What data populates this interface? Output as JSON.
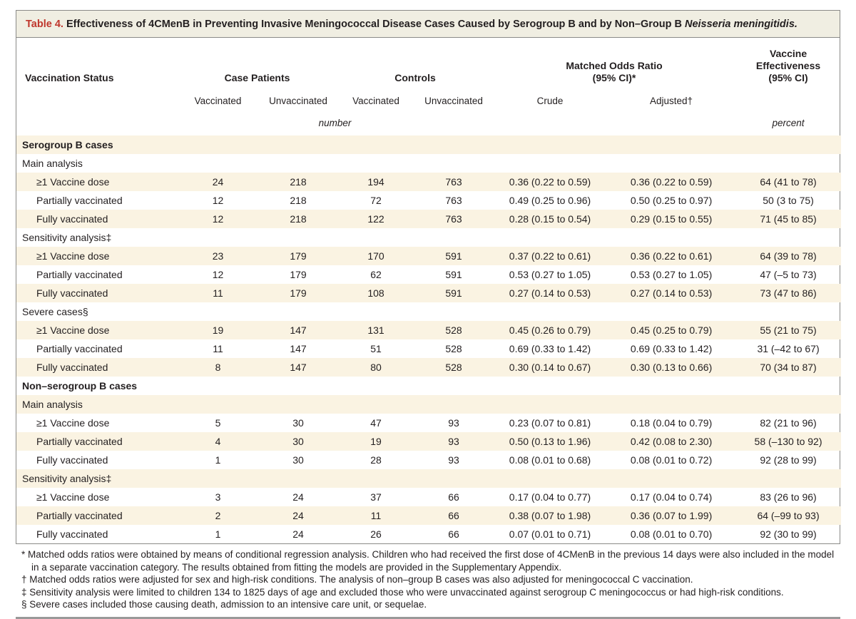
{
  "colors": {
    "stripe": "#faf3e2",
    "title_bar_bg": "#f0eee2",
    "border": "#8a8a87",
    "table_label_red": "#bf362c",
    "text": "#231f20",
    "bottom_rule": "#999999"
  },
  "title": {
    "label": "Table 4.",
    "text": " Effectiveness of 4CMenB in Preventing Invasive Meningococcal Disease Cases Caused by Serogroup B and by Non–Group B ",
    "species": "Neisseria meningitidis."
  },
  "header": {
    "vaccination_status": "Vaccination Status",
    "case_patients": "Case Patients",
    "controls": "Controls",
    "mor_line1": "Matched Odds Ratio",
    "mor_line2": "(95% CI)*",
    "ve_line1": "Vaccine Effectiveness",
    "ve_line2": "(95% CI)",
    "sub": {
      "case_vaccinated": "Vaccinated",
      "case_unvaccinated": "Unvaccinated",
      "ctrl_vaccinated": "Vaccinated",
      "ctrl_unvaccinated": "Unvaccinated",
      "crude": "Crude",
      "adjusted": "Adjusted†"
    },
    "unit_number": "number",
    "unit_percent": "percent"
  },
  "rows": [
    {
      "type": "section",
      "label": "Serogroup B cases"
    },
    {
      "type": "subsection",
      "label": "Main analysis"
    },
    {
      "type": "data",
      "label": "≥1 Vaccine dose",
      "values": [
        "24",
        "218",
        "194",
        "763",
        "0.36 (0.22 to 0.59)",
        "0.36 (0.22 to 0.59)",
        "64 (41 to 78)"
      ]
    },
    {
      "type": "data",
      "label": "Partially vaccinated",
      "values": [
        "12",
        "218",
        "72",
        "763",
        "0.49 (0.25 to 0.96)",
        "0.50 (0.25 to 0.97)",
        "50 (3 to 75)"
      ]
    },
    {
      "type": "data",
      "label": "Fully vaccinated",
      "values": [
        "12",
        "218",
        "122",
        "763",
        "0.28 (0.15 to 0.54)",
        "0.29 (0.15 to 0.55)",
        "71 (45 to 85)"
      ]
    },
    {
      "type": "subsection",
      "label": "Sensitivity analysis‡"
    },
    {
      "type": "data",
      "label": "≥1 Vaccine dose",
      "values": [
        "23",
        "179",
        "170",
        "591",
        "0.37 (0.22 to 0.61)",
        "0.36 (0.22 to 0.61)",
        "64 (39 to 78)"
      ]
    },
    {
      "type": "data",
      "label": "Partially vaccinated",
      "values": [
        "12",
        "179",
        "62",
        "591",
        "0.53 (0.27 to 1.05)",
        "0.53 (0.27 to 1.05)",
        "47 (–5 to 73)"
      ]
    },
    {
      "type": "data",
      "label": "Fully vaccinated",
      "values": [
        "11",
        "179",
        "108",
        "591",
        "0.27 (0.14 to 0.53)",
        "0.27 (0.14 to 0.53)",
        "73 (47 to 86)"
      ]
    },
    {
      "type": "subsection",
      "label": "Severe cases§"
    },
    {
      "type": "data",
      "label": "≥1 Vaccine dose",
      "values": [
        "19",
        "147",
        "131",
        "528",
        "0.45 (0.26 to 0.79)",
        "0.45 (0.25 to 0.79)",
        "55 (21 to 75)"
      ]
    },
    {
      "type": "data",
      "label": "Partially vaccinated",
      "values": [
        "11",
        "147",
        "51",
        "528",
        "0.69 (0.33 to 1.42)",
        "0.69 (0.33 to 1.42)",
        "31 (–42 to 67)"
      ]
    },
    {
      "type": "data",
      "label": "Fully vaccinated",
      "values": [
        "8",
        "147",
        "80",
        "528",
        "0.30 (0.14 to 0.67)",
        "0.30 (0.13 to 0.66)",
        "70 (34 to 87)"
      ]
    },
    {
      "type": "section",
      "label": "Non–serogroup B cases"
    },
    {
      "type": "subsection",
      "label": "Main analysis"
    },
    {
      "type": "data",
      "label": "≥1 Vaccine dose",
      "values": [
        "5",
        "30",
        "47",
        "93",
        "0.23 (0.07 to 0.81)",
        "0.18 (0.04 to 0.79)",
        "82 (21 to 96)"
      ]
    },
    {
      "type": "data",
      "label": "Partially vaccinated",
      "values": [
        "4",
        "30",
        "19",
        "93",
        "0.50 (0.13 to 1.96)",
        "0.42 (0.08 to 2.30)",
        "58 (–130 to 92)"
      ]
    },
    {
      "type": "data",
      "label": "Fully vaccinated",
      "values": [
        "1",
        "30",
        "28",
        "93",
        "0.08 (0.01 to 0.68)",
        "0.08 (0.01 to 0.72)",
        "92 (28 to 99)"
      ]
    },
    {
      "type": "subsection",
      "label": "Sensitivity analysis‡"
    },
    {
      "type": "data",
      "label": "≥1 Vaccine dose",
      "values": [
        "3",
        "24",
        "37",
        "66",
        "0.17 (0.04 to 0.77)",
        "0.17 (0.04 to 0.74)",
        "83 (26 to 96)"
      ]
    },
    {
      "type": "data",
      "label": "Partially vaccinated",
      "values": [
        "2",
        "24",
        "11",
        "66",
        "0.38 (0.07 to 1.98)",
        "0.36 (0.07 to 1.99)",
        "64 (–99 to 93)"
      ]
    },
    {
      "type": "data",
      "label": "Fully vaccinated",
      "values": [
        "1",
        "24",
        "26",
        "66",
        "0.07 (0.01 to 0.71)",
        "0.08 (0.01 to 0.70)",
        "92 (30 to 99)"
      ]
    }
  ],
  "footnotes": [
    "* Matched odds ratios were obtained by means of conditional regression analysis. Children who had received the first dose of 4CMenB in the previous 14 days were also included in the model in a separate vaccination category. The results obtained from fitting the models are provided in the Supplementary Appendix.",
    "† Matched odds ratios were adjusted for sex and high-risk conditions. The analysis of non–group B cases was also adjusted for meningococcal C vaccination.",
    "‡ Sensitivity analysis were limited to children 134 to 1825 days of age and excluded those who were unvaccinated against serogroup C meningococcus or had high-risk conditions.",
    "§ Severe cases included those causing death, admission to an intensive care unit, or sequelae."
  ]
}
